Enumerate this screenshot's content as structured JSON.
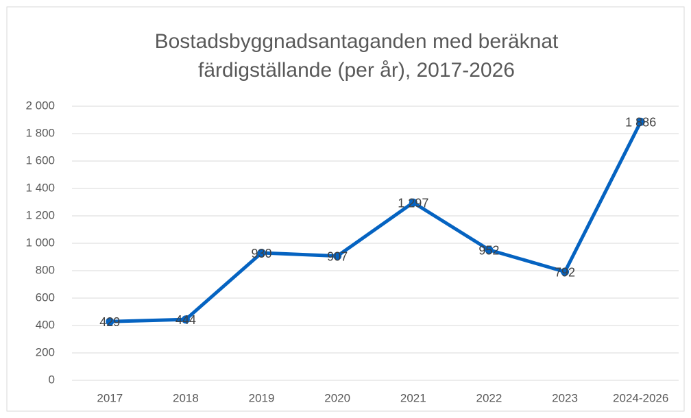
{
  "chart_data": {
    "type": "line",
    "title": [
      "Bostadsbyggnadsantaganden med beräknat",
      "färdigställande (per år), 2017-2026"
    ],
    "categories": [
      "2017",
      "2018",
      "2019",
      "2020",
      "2021",
      "2022",
      "2023",
      "2024-2026"
    ],
    "series": [
      {
        "color": "#0563c1",
        "values": [
          429,
          444,
          930,
          907,
          1297,
          952,
          792,
          1886
        ],
        "value_labels": [
          "429",
          "444",
          "930",
          "907",
          "1 297",
          "952",
          "792",
          "1 886"
        ]
      }
    ],
    "ylim": [
      0,
      2000
    ],
    "yticks": [
      0,
      200,
      400,
      600,
      800,
      {
        "value": 1000,
        "label": "1 000"
      },
      {
        "value": 1200,
        "label": "1 200"
      },
      {
        "value": 1400,
        "label": "1 400"
      },
      {
        "value": 1600,
        "label": "1 600"
      },
      {
        "value": 1800,
        "label": "1 800"
      },
      {
        "value": 2000,
        "label": "2 000"
      }
    ],
    "grid": true
  }
}
